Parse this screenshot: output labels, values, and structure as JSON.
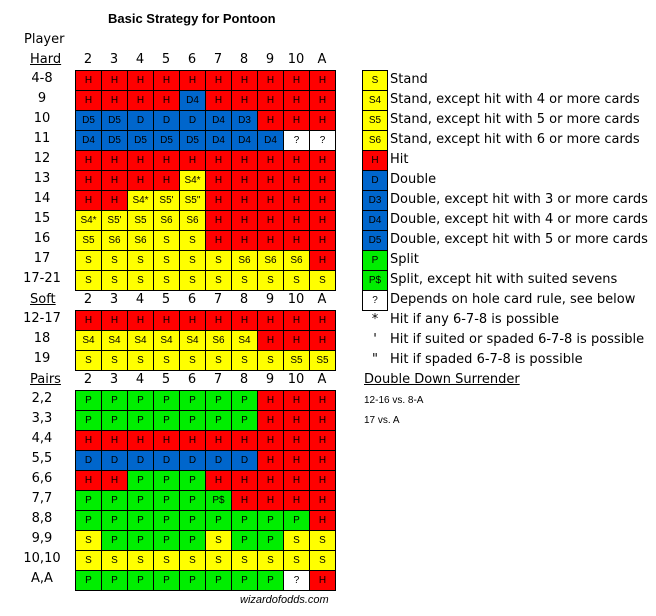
{
  "title": "Basic Strategy for Pontoon",
  "player_label": "Player",
  "dealer_columns": [
    "2",
    "3",
    "4",
    "5",
    "6",
    "7",
    "8",
    "9",
    "10",
    "A"
  ],
  "colors": {
    "H": "#ff0000",
    "S": "#ffff00",
    "D": "#0066cc",
    "P": "#00ee00",
    "?": "#ffffff"
  },
  "sections": [
    {
      "name": "Hard",
      "rows": [
        {
          "label": "4-8",
          "cells": [
            "H",
            "H",
            "H",
            "H",
            "H",
            "H",
            "H",
            "H",
            "H",
            "H"
          ]
        },
        {
          "label": "9",
          "cells": [
            "H",
            "H",
            "H",
            "H",
            "D4",
            "H",
            "H",
            "H",
            "H",
            "H"
          ]
        },
        {
          "label": "10",
          "cells": [
            "D5",
            "D5",
            "D",
            "D",
            "D",
            "D4",
            "D3",
            "H",
            "H",
            "H"
          ]
        },
        {
          "label": "11",
          "cells": [
            "D4",
            "D5",
            "D5",
            "D5",
            "D5",
            "D4",
            "D4",
            "D4",
            "?",
            "?"
          ]
        },
        {
          "label": "12",
          "cells": [
            "H",
            "H",
            "H",
            "H",
            "H",
            "H",
            "H",
            "H",
            "H",
            "H"
          ]
        },
        {
          "label": "13",
          "cells": [
            "H",
            "H",
            "H",
            "H",
            "S4*",
            "H",
            "H",
            "H",
            "H",
            "H"
          ]
        },
        {
          "label": "14",
          "cells": [
            "H",
            "H",
            "S4*",
            "S5'",
            "S5\"",
            "H",
            "H",
            "H",
            "H",
            "H"
          ]
        },
        {
          "label": "15",
          "cells": [
            "S4*",
            "S5'",
            "S5",
            "S6",
            "S6",
            "H",
            "H",
            "H",
            "H",
            "H"
          ]
        },
        {
          "label": "16",
          "cells": [
            "S5",
            "S6",
            "S6",
            "S",
            "S",
            "H",
            "H",
            "H",
            "H",
            "H"
          ]
        },
        {
          "label": "17",
          "cells": [
            "S",
            "S",
            "S",
            "S",
            "S",
            "S",
            "S6",
            "S6",
            "S6",
            "H"
          ]
        },
        {
          "label": "17-21",
          "cells": [
            "S",
            "S",
            "S",
            "S",
            "S",
            "S",
            "S",
            "S",
            "S",
            "S"
          ]
        }
      ]
    },
    {
      "name": "Soft",
      "rows": [
        {
          "label": "12-17",
          "cells": [
            "H",
            "H",
            "H",
            "H",
            "H",
            "H",
            "H",
            "H",
            "H",
            "H"
          ]
        },
        {
          "label": "18",
          "cells": [
            "S4",
            "S4",
            "S4",
            "S4",
            "S4",
            "S6",
            "S4",
            "H",
            "H",
            "H"
          ]
        },
        {
          "label": "19",
          "cells": [
            "S",
            "S",
            "S",
            "S",
            "S",
            "S",
            "S",
            "S",
            "S5",
            "S5"
          ]
        }
      ]
    },
    {
      "name": "Pairs",
      "rows": [
        {
          "label": "2,2",
          "cells": [
            "P",
            "P",
            "P",
            "P",
            "P",
            "P",
            "P",
            "H",
            "H",
            "H"
          ]
        },
        {
          "label": "3,3",
          "cells": [
            "P",
            "P",
            "P",
            "P",
            "P",
            "P",
            "P",
            "H",
            "H",
            "H"
          ]
        },
        {
          "label": "4,4",
          "cells": [
            "H",
            "H",
            "H",
            "H",
            "H",
            "H",
            "H",
            "H",
            "H",
            "H"
          ]
        },
        {
          "label": "5,5",
          "cells": [
            "D",
            "D",
            "D",
            "D",
            "D",
            "D",
            "D",
            "H",
            "H",
            "H"
          ]
        },
        {
          "label": "6,6",
          "cells": [
            "H",
            "H",
            "P",
            "P",
            "P",
            "H",
            "H",
            "H",
            "H",
            "H"
          ]
        },
        {
          "label": "7,7",
          "cells": [
            "P",
            "P",
            "P",
            "P",
            "P",
            "P$",
            "H",
            "H",
            "H",
            "H"
          ]
        },
        {
          "label": "8,8",
          "cells": [
            "P",
            "P",
            "P",
            "P",
            "P",
            "P",
            "P",
            "P",
            "P",
            "H"
          ]
        },
        {
          "label": "9,9",
          "cells": [
            "S",
            "P",
            "P",
            "P",
            "P",
            "S",
            "P",
            "P",
            "S",
            "S"
          ]
        },
        {
          "label": "10,10",
          "cells": [
            "S",
            "S",
            "S",
            "S",
            "S",
            "S",
            "S",
            "S",
            "S",
            "S"
          ]
        },
        {
          "label": "A,A",
          "cells": [
            "P",
            "P",
            "P",
            "P",
            "P",
            "P",
            "P",
            "P",
            "?",
            "H"
          ]
        }
      ]
    }
  ],
  "legend": [
    {
      "code": "S",
      "text": "Stand"
    },
    {
      "code": "S4",
      "text": "Stand, except hit with 4 or more cards"
    },
    {
      "code": "S5",
      "text": "Stand, except hit with 5 or more cards"
    },
    {
      "code": "S6",
      "text": "Stand, except hit with 6 or more cards"
    },
    {
      "code": "H",
      "text": "Hit"
    },
    {
      "code": "D",
      "text": "Double"
    },
    {
      "code": "D3",
      "text": "Double, except hit with 3 or more cards"
    },
    {
      "code": "D4",
      "text": "Double, except hit with 4 or more cards"
    },
    {
      "code": "D5",
      "text": "Double, except hit with 5 or more cards"
    },
    {
      "code": "P",
      "text": "Split"
    },
    {
      "code": "P$",
      "text": "Split, except hit with suited sevens"
    },
    {
      "code": "?",
      "text": "Depends on hole card rule, see below"
    }
  ],
  "symbols": [
    {
      "symbol": "*",
      "text": "Hit if any 6-7-8 is possible"
    },
    {
      "symbol": "'",
      "text": "Hit if suited or spaded 6-7-8 is possible"
    },
    {
      "symbol": "\"",
      "text": "Hit if spaded 6-7-8 is possible"
    }
  ],
  "double_down_surrender": {
    "heading": "Double Down Surrender",
    "items": [
      "12-16 vs. 8-A",
      "17 vs. A"
    ]
  },
  "footer": "wizardofodds.com"
}
